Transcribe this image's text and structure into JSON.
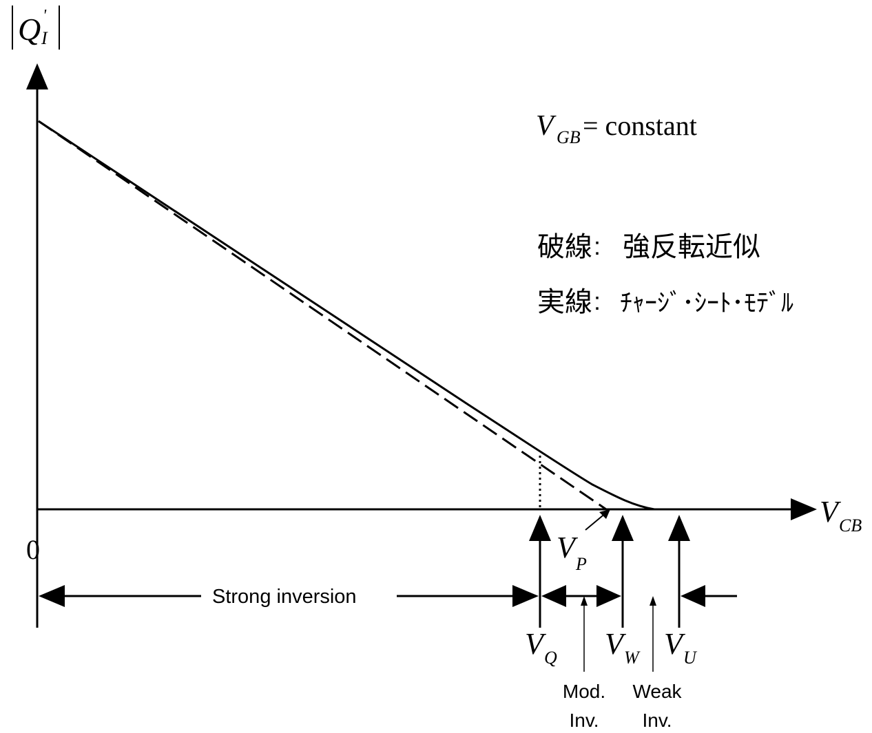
{
  "axes": {
    "y_label_main": "Q",
    "y_label_sup": "'",
    "y_label_sub": "I",
    "x_label_main": "V",
    "x_label_sub": "CB",
    "origin": "0"
  },
  "condition": {
    "main": "V",
    "sub": "GB",
    "rest": " = constant"
  },
  "legend": {
    "dashed_key": "破線",
    "dashed_value": "強反転近似",
    "solid_key": "実線",
    "solid_value": "ﾁｬｰｼﾞ･ｼｰﾄ･ﾓﾃﾞﾙ",
    "separator": ":"
  },
  "markers": {
    "vp_main": "V",
    "vp_sub": "P",
    "vq_main": "V",
    "vq_sub": "Q",
    "vw_main": "V",
    "vw_sub": "W",
    "vu_main": "V",
    "vu_sub": "U"
  },
  "regions": {
    "strong": "Strong inversion",
    "mod_line1": "Mod.",
    "mod_line2": "Inv.",
    "weak_line1": "Weak",
    "weak_line2": "Inv."
  }
}
